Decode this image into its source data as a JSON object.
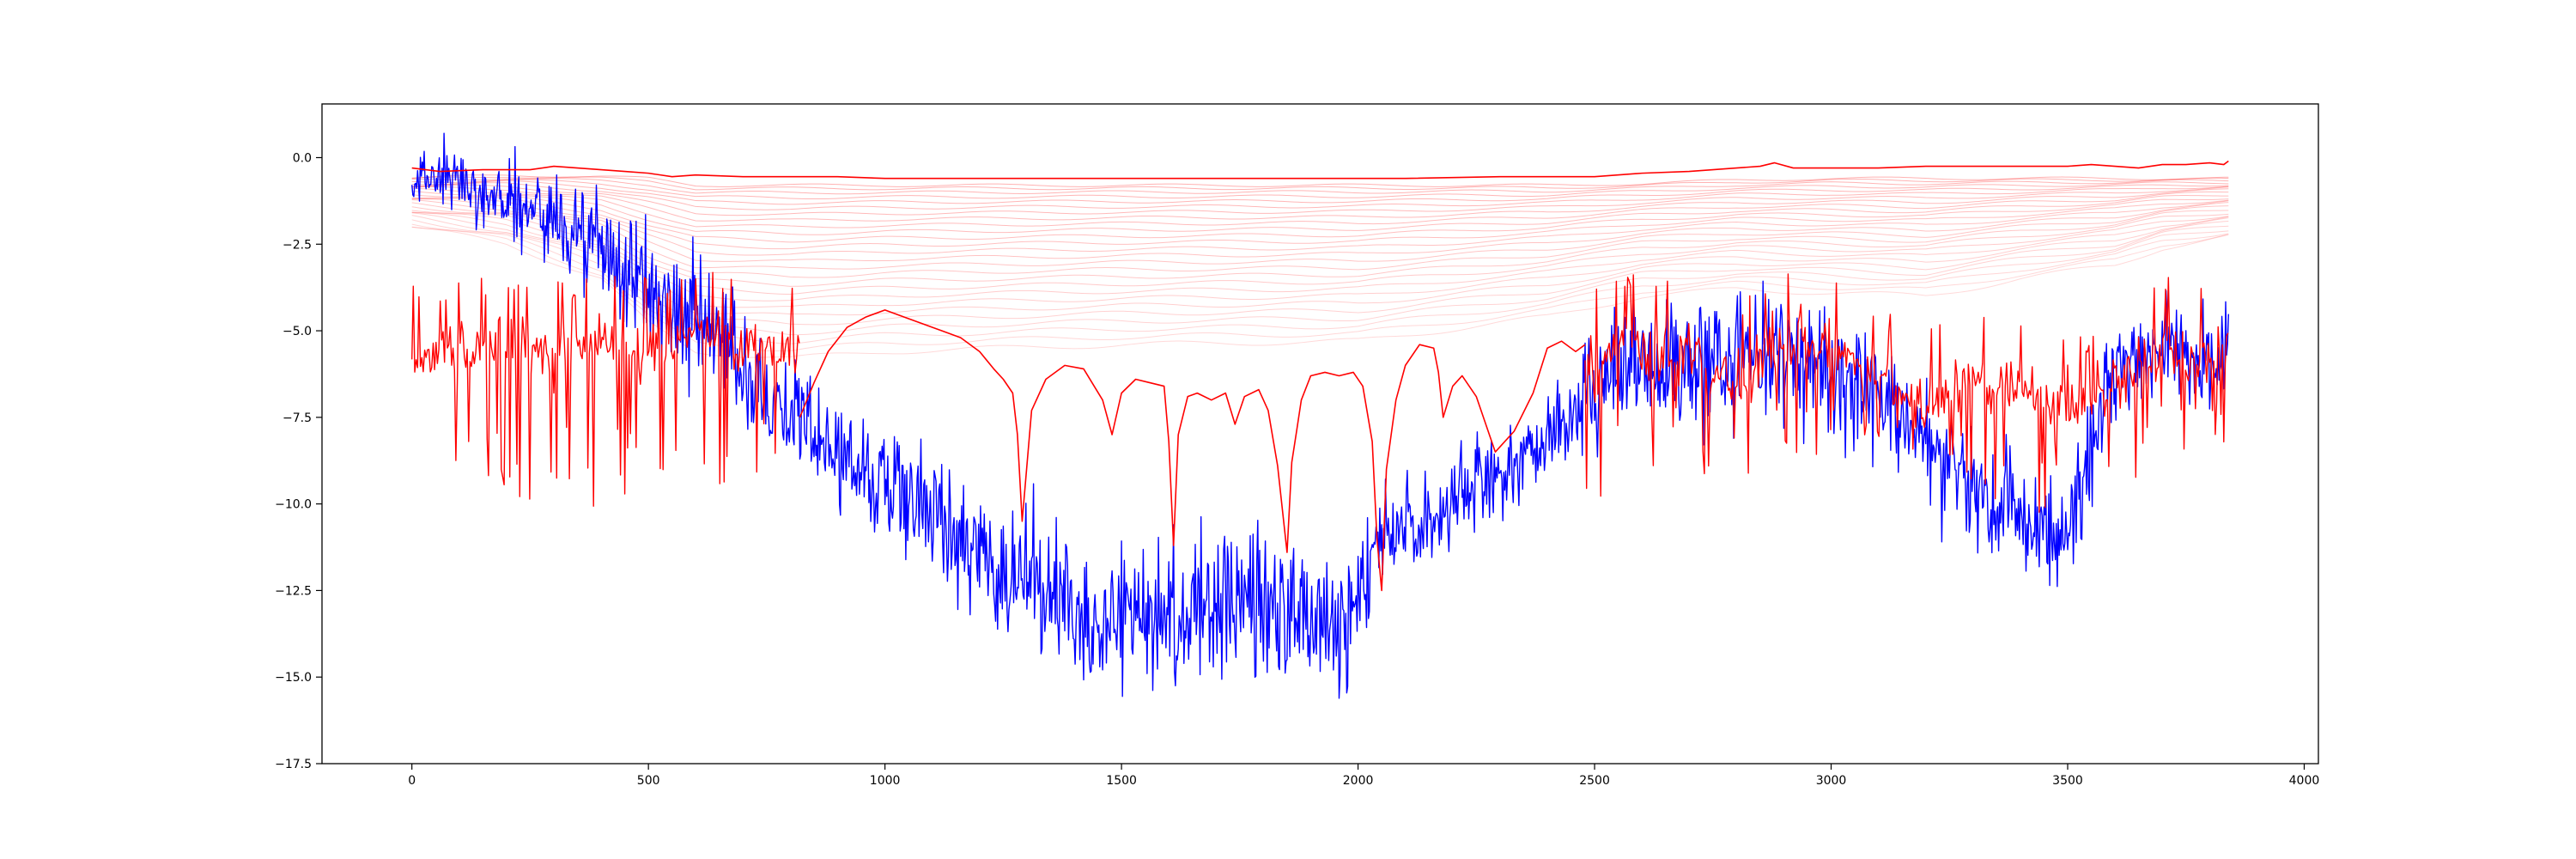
{
  "chart_data": {
    "type": "line",
    "title": "",
    "xlabel": "",
    "ylabel": "",
    "xlim": [
      -190,
      4030
    ],
    "ylim": [
      -17.5,
      1.55
    ],
    "grid": false,
    "legend": "none",
    "x_ticks": [
      0,
      500,
      1000,
      1500,
      2000,
      2500,
      3000,
      3500,
      4000
    ],
    "x_tick_labels": [
      "0",
      "500",
      "1000",
      "1500",
      "2000",
      "2500",
      "3000",
      "3500",
      "4000"
    ],
    "y_ticks": [
      0.0,
      -2.5,
      -5.0,
      -7.5,
      -10.0,
      -12.5,
      -15.0,
      -17.5
    ],
    "y_tick_labels": [
      "0.0",
      "−2.5",
      "−5.0",
      "−7.5",
      "−10.0",
      "−12.5",
      "−15.0",
      "−17.5"
    ],
    "x_range": [
      0,
      3840
    ],
    "colors": {
      "red": "#ff0000",
      "blue": "#0000ff",
      "axis": "#000000"
    },
    "series": [
      {
        "color": "#0000ff",
        "style": "noisy",
        "envelope_x": [
          0,
          20,
          60,
          120,
          200,
          280,
          350,
          420,
          500,
          600,
          700,
          800,
          900,
          1000,
          1100,
          1200,
          1300,
          1400,
          1500,
          1600,
          1700,
          1800,
          1900,
          2000,
          2030,
          2060,
          2100,
          2200,
          2300,
          2400,
          2500,
          2600,
          2700,
          2800,
          2900,
          3000,
          3100,
          3200,
          3300,
          3400,
          3500,
          3550,
          3600,
          3650,
          3700,
          3750,
          3800,
          3840
        ],
        "envelope_mid": [
          -1.0,
          -0.5,
          -0.6,
          -0.8,
          -1.2,
          -1.6,
          -2.2,
          -2.9,
          -3.8,
          -4.8,
          -6.0,
          -7.4,
          -8.6,
          -9.3,
          -10.3,
          -11.3,
          -12.3,
          -13.0,
          -13.2,
          -13.0,
          -12.8,
          -13.1,
          -13.4,
          -13.2,
          -11.2,
          -10.8,
          -10.6,
          -10.1,
          -9.2,
          -8.2,
          -6.6,
          -6.0,
          -6.1,
          -5.6,
          -5.6,
          -6.3,
          -7.1,
          -8.1,
          -9.6,
          -10.3,
          -11.2,
          -8.3,
          -6.4,
          -5.8,
          -5.5,
          -5.8,
          -6.0,
          -5.5
        ],
        "envelope_amp": [
          0.4,
          0.6,
          0.9,
          1.0,
          1.2,
          1.3,
          1.5,
          1.6,
          1.7,
          1.6,
          1.6,
          1.5,
          1.6,
          1.6,
          1.7,
          1.8,
          2.0,
          2.0,
          1.9,
          1.9,
          2.0,
          2.0,
          1.9,
          1.8,
          1.5,
          1.4,
          1.4,
          1.4,
          1.4,
          1.4,
          1.6,
          1.6,
          1.7,
          1.8,
          1.7,
          1.6,
          1.5,
          1.6,
          1.6,
          1.6,
          1.7,
          1.5,
          1.4,
          1.4,
          1.4,
          1.4,
          1.4,
          1.3
        ],
        "clip": [
          -16.6,
          0.75
        ]
      },
      {
        "color": "#ff0000",
        "style": "spiky",
        "x_range": [
          0,
          820
        ],
        "envelope_x": [
          0,
          100,
          200,
          300,
          400,
          500,
          600,
          700,
          820
        ],
        "envelope_mid": [
          -5.8,
          -5.4,
          -5.5,
          -5.7,
          -5.4,
          -5.6,
          -5.2,
          -5.4,
          -5.6
        ],
        "spike_depth": [
          -10.4,
          -9.9,
          -9.6,
          -10.3,
          -10.5,
          -10.6,
          -10.0,
          -9.4,
          -9.0
        ]
      },
      {
        "color": "#ff0000",
        "style": "smooth",
        "x": [
          820,
          850,
          880,
          920,
          960,
          1000,
          1040,
          1080,
          1120,
          1160,
          1200,
          1230,
          1250,
          1270,
          1280,
          1290,
          1310,
          1340,
          1380,
          1420,
          1460,
          1480,
          1500,
          1530,
          1560,
          1590,
          1600,
          1610,
          1620,
          1640,
          1660,
          1690,
          1720,
          1740,
          1760,
          1790,
          1810,
          1830,
          1850,
          1860,
          1870,
          1880,
          1900,
          1930,
          1960,
          1990,
          2010,
          2030,
          2040,
          2050,
          2060,
          2080,
          2100,
          2130,
          2160,
          2170,
          2180,
          2200,
          2220,
          2250,
          2290,
          2330,
          2370,
          2400,
          2430,
          2460,
          2480
        ],
        "y": [
          -7.5,
          -6.5,
          -5.6,
          -4.9,
          -4.6,
          -4.4,
          -4.6,
          -4.8,
          -5.0,
          -5.2,
          -5.6,
          -6.1,
          -6.4,
          -6.8,
          -8.0,
          -10.5,
          -7.3,
          -6.4,
          -6.0,
          -6.1,
          -7.0,
          -8.0,
          -6.8,
          -6.4,
          -6.5,
          -6.6,
          -8.2,
          -11.2,
          -8.0,
          -6.9,
          -6.8,
          -7.0,
          -6.8,
          -7.7,
          -6.9,
          -6.7,
          -7.3,
          -8.9,
          -11.4,
          -8.8,
          -7.9,
          -7.0,
          -6.3,
          -6.2,
          -6.3,
          -6.2,
          -6.6,
          -8.2,
          -11.0,
          -12.5,
          -9.0,
          -7.0,
          -6.0,
          -5.4,
          -5.5,
          -6.2,
          -7.5,
          -6.6,
          -6.3,
          -6.9,
          -8.5,
          -7.9,
          -6.8,
          -5.5,
          -5.3,
          -5.6,
          -5.4
        ]
      },
      {
        "color": "#ff0000",
        "style": "spiky",
        "x_range": [
          2480,
          3840
        ],
        "envelope_x": [
          2480,
          2600,
          2700,
          2800,
          2900,
          3000,
          3100,
          3200,
          3300,
          3400,
          3500,
          3600,
          3700,
          3840
        ],
        "envelope_mid": [
          -6.0,
          -5.5,
          -5.7,
          -6.5,
          -5.2,
          -5.4,
          -6.5,
          -7.0,
          -6.4,
          -6.7,
          -7.4,
          -6.5,
          -5.6,
          -5.8
        ],
        "spike_depth": [
          -10.4,
          -9.0,
          -9.2,
          -9.8,
          -8.5,
          -8.7,
          -9.1,
          -8.8,
          -9.6,
          -10.3,
          -10.8,
          -10.7,
          -9.0,
          -8.3
        ]
      },
      {
        "color": "#ff0000",
        "style": "smooth",
        "x": [
          0,
          60,
          150,
          250,
          300,
          350,
          400,
          450,
          500,
          550,
          600,
          700,
          800,
          900,
          1000,
          1200,
          1500,
          1800,
          2100,
          2300,
          2500,
          2600,
          2700,
          2750,
          2800,
          2850,
          2880,
          2920,
          3000,
          3100,
          3200,
          3300,
          3400,
          3500,
          3550,
          3600,
          3650,
          3700,
          3750,
          3800,
          3830,
          3840
        ],
        "y": [
          -0.3,
          -0.4,
          -0.35,
          -0.35,
          -0.25,
          -0.3,
          -0.35,
          -0.4,
          -0.45,
          -0.55,
          -0.5,
          -0.55,
          -0.55,
          -0.55,
          -0.6,
          -0.6,
          -0.6,
          -0.6,
          -0.6,
          -0.55,
          -0.55,
          -0.45,
          -0.4,
          -0.35,
          -0.3,
          -0.25,
          -0.15,
          -0.3,
          -0.3,
          -0.3,
          -0.25,
          -0.25,
          -0.25,
          -0.25,
          -0.2,
          -0.25,
          -0.3,
          -0.2,
          -0.2,
          -0.15,
          -0.2,
          -0.1
        ]
      }
    ],
    "faint_series": {
      "color": "#ff0000",
      "opacity": 0.25,
      "count": 26,
      "x": [
        0,
        200,
        400,
        500,
        600,
        800,
        1000,
        1500,
        2000,
        2400,
        2600,
        2800,
        3000,
        3200,
        3400,
        3600,
        3700,
        3840
      ],
      "top_y": [
        -0.6,
        -0.5,
        -0.55,
        -0.6,
        -0.8,
        -0.8,
        -0.8,
        -0.8,
        -0.8,
        -0.8,
        -0.75,
        -0.65,
        -0.6,
        -0.6,
        -0.6,
        -0.6,
        -0.6,
        -0.6
      ],
      "bottom_y": [
        -2.0,
        -2.5,
        -3.5,
        -4.8,
        -5.6,
        -5.8,
        -5.6,
        -5.4,
        -5.3,
        -4.6,
        -4.0,
        -3.8,
        -3.9,
        -4.0,
        -3.5,
        -3.1,
        -2.6,
        -2.3
      ]
    }
  }
}
